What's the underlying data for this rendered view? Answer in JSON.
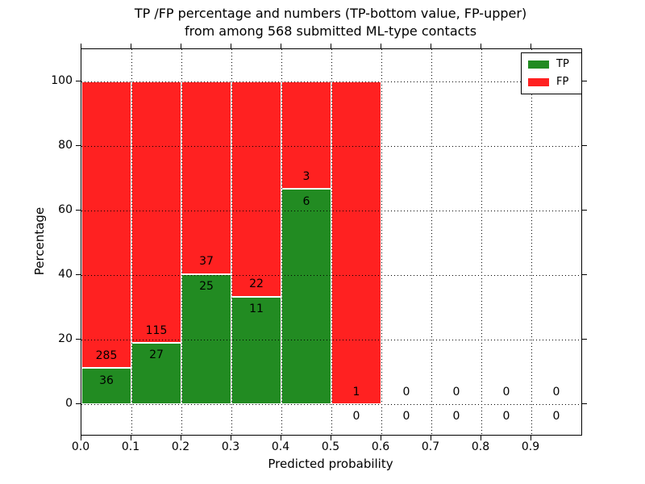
{
  "figure": {
    "background": "#ffffff",
    "title_lines": [
      "TP /FP percentage and numbers (TP-bottom value, FP-upper)",
      "from among 568 submitted ML-type contacts"
    ]
  },
  "chart_data": {
    "type": "bar",
    "stacked": true,
    "title": "TP /FP percentage and numbers (TP-bottom value, FP-upper)\nfrom among 568 submitted ML-type contacts",
    "xlabel": "Predicted probability",
    "ylabel": "Percentage",
    "x_tick_labels": [
      "0.0",
      "0.1",
      "0.2",
      "0.3",
      "0.4",
      "0.5",
      "0.6",
      "0.7",
      "0.8",
      "0.9"
    ],
    "y_tick_values": [
      0,
      20,
      40,
      60,
      80,
      100
    ],
    "xlim": [
      0.0,
      1.0
    ],
    "ylim": [
      -10,
      110
    ],
    "bin_edges_start": [
      0.0,
      0.1,
      0.2,
      0.3,
      0.4,
      0.5,
      0.6,
      0.7,
      0.8,
      0.9
    ],
    "bin_width": 0.1,
    "grid": "dotted, drawn above bars",
    "legend_position": "upper right",
    "total_contacts": 568,
    "series": [
      {
        "name": "TP",
        "color": "#228B22",
        "counts": [
          36,
          27,
          25,
          11,
          6,
          0,
          0,
          0,
          0,
          0
        ]
      },
      {
        "name": "FP",
        "color": "#ff2121",
        "counts": [
          285,
          115,
          37,
          22,
          3,
          1,
          0,
          0,
          0,
          0
        ]
      }
    ],
    "tp_percent_of_bin": [
      11.2,
      19.0,
      40.3,
      33.3,
      66.7,
      0.0,
      null,
      null,
      null,
      null
    ],
    "bar_edge_color": "#ffffff"
  },
  "colors": {
    "axis": "#000000",
    "grid": "#000000",
    "text": "#000000",
    "tp": "#228B22",
    "fp": "#ff2121"
  }
}
